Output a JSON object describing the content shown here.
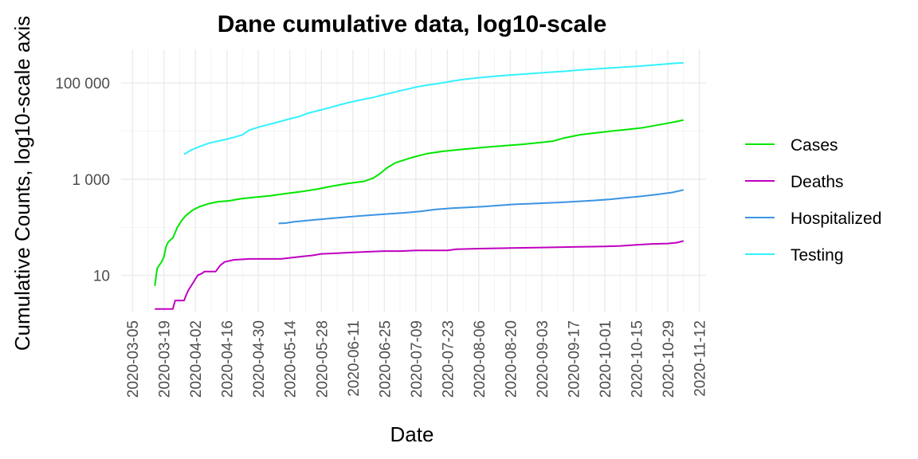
{
  "chart_data": {
    "type": "line",
    "title": "Dane cumulative data, log10-scale",
    "xlabel": "Date",
    "ylabel": "Cumulative Counts, log10-scale axis",
    "y_scale": "log10",
    "ylim": [
      1.7,
      500000
    ],
    "xlim": [
      "2020-02-29",
      "2020-11-15"
    ],
    "x_ticks": [
      "2020-03-05",
      "2020-03-19",
      "2020-04-02",
      "2020-04-16",
      "2020-04-30",
      "2020-05-14",
      "2020-05-28",
      "2020-06-11",
      "2020-06-25",
      "2020-07-09",
      "2020-07-23",
      "2020-08-06",
      "2020-08-20",
      "2020-09-03",
      "2020-09-17",
      "2020-10-01",
      "2020-10-15",
      "2020-10-29",
      "2020-11-12"
    ],
    "y_ticks": [
      {
        "value": 10,
        "label": "10"
      },
      {
        "value": 1000,
        "label": "1 000"
      },
      {
        "value": 100000,
        "label": "100 000"
      }
    ],
    "grid": true,
    "legend_position": "right",
    "series": [
      {
        "name": "Cases",
        "color": "#00e600",
        "points": [
          [
            "2020-03-15",
            6
          ],
          [
            "2020-03-16",
            14
          ],
          [
            "2020-03-18",
            19
          ],
          [
            "2020-03-19",
            24
          ],
          [
            "2020-03-20",
            40
          ],
          [
            "2020-03-21",
            50
          ],
          [
            "2020-03-23",
            60
          ],
          [
            "2020-03-25",
            100
          ],
          [
            "2020-03-27",
            140
          ],
          [
            "2020-03-29",
            180
          ],
          [
            "2020-04-01",
            230
          ],
          [
            "2020-04-04",
            270
          ],
          [
            "2020-04-08",
            310
          ],
          [
            "2020-04-12",
            340
          ],
          [
            "2020-04-17",
            355
          ],
          [
            "2020-04-22",
            390
          ],
          [
            "2020-04-28",
            420
          ],
          [
            "2020-05-05",
            450
          ],
          [
            "2020-05-12",
            500
          ],
          [
            "2020-05-19",
            550
          ],
          [
            "2020-05-26",
            620
          ],
          [
            "2020-06-02",
            720
          ],
          [
            "2020-06-09",
            820
          ],
          [
            "2020-06-16",
            900
          ],
          [
            "2020-06-20",
            1050
          ],
          [
            "2020-06-23",
            1300
          ],
          [
            "2020-06-26",
            1700
          ],
          [
            "2020-06-30",
            2200
          ],
          [
            "2020-07-07",
            2800
          ],
          [
            "2020-07-14",
            3400
          ],
          [
            "2020-07-21",
            3800
          ],
          [
            "2020-07-28",
            4100
          ],
          [
            "2020-08-04",
            4400
          ],
          [
            "2020-08-11",
            4700
          ],
          [
            "2020-08-18",
            5000
          ],
          [
            "2020-08-25",
            5300
          ],
          [
            "2020-09-01",
            5700
          ],
          [
            "2020-09-08",
            6200
          ],
          [
            "2020-09-13",
            7200
          ],
          [
            "2020-09-20",
            8400
          ],
          [
            "2020-09-27",
            9200
          ],
          [
            "2020-10-04",
            10000
          ],
          [
            "2020-10-11",
            10800
          ],
          [
            "2020-10-18",
            11800
          ],
          [
            "2020-10-25",
            13500
          ],
          [
            "2020-11-01",
            15500
          ],
          [
            "2020-11-05",
            17000
          ]
        ]
      },
      {
        "name": "Deaths",
        "color": "#c000c0",
        "points": [
          [
            "2020-03-15",
            2
          ],
          [
            "2020-03-23",
            2
          ],
          [
            "2020-03-24",
            3
          ],
          [
            "2020-03-28",
            3
          ],
          [
            "2020-03-29",
            4
          ],
          [
            "2020-03-30",
            5
          ],
          [
            "2020-04-01",
            7
          ],
          [
            "2020-04-03",
            10
          ],
          [
            "2020-04-05",
            11
          ],
          [
            "2020-04-06",
            12
          ],
          [
            "2020-04-11",
            12
          ],
          [
            "2020-04-13",
            16
          ],
          [
            "2020-04-15",
            19
          ],
          [
            "2020-04-19",
            21
          ],
          [
            "2020-04-26",
            22
          ],
          [
            "2020-05-03",
            22
          ],
          [
            "2020-05-10",
            22
          ],
          [
            "2020-05-17",
            24
          ],
          [
            "2020-05-24",
            26
          ],
          [
            "2020-05-28",
            28
          ],
          [
            "2020-06-04",
            29
          ],
          [
            "2020-06-11",
            30
          ],
          [
            "2020-06-18",
            31
          ],
          [
            "2020-06-25",
            32
          ],
          [
            "2020-07-02",
            32
          ],
          [
            "2020-07-09",
            33
          ],
          [
            "2020-07-23",
            33
          ],
          [
            "2020-07-27",
            35
          ],
          [
            "2020-08-06",
            36
          ],
          [
            "2020-08-20",
            37
          ],
          [
            "2020-09-03",
            38
          ],
          [
            "2020-09-17",
            39
          ],
          [
            "2020-10-01",
            40
          ],
          [
            "2020-10-08",
            41
          ],
          [
            "2020-10-15",
            43
          ],
          [
            "2020-10-22",
            45
          ],
          [
            "2020-10-29",
            46
          ],
          [
            "2020-11-02",
            48
          ],
          [
            "2020-11-05",
            52
          ]
        ]
      },
      {
        "name": "Hospitalized",
        "color": "#3b94e3",
        "points": [
          [
            "2020-05-09",
            120
          ],
          [
            "2020-05-12",
            122
          ],
          [
            "2020-05-16",
            130
          ],
          [
            "2020-05-23",
            140
          ],
          [
            "2020-05-30",
            150
          ],
          [
            "2020-06-06",
            160
          ],
          [
            "2020-06-13",
            170
          ],
          [
            "2020-06-20",
            180
          ],
          [
            "2020-06-27",
            190
          ],
          [
            "2020-07-04",
            200
          ],
          [
            "2020-07-11",
            215
          ],
          [
            "2020-07-18",
            235
          ],
          [
            "2020-07-25",
            250
          ],
          [
            "2020-08-01",
            260
          ],
          [
            "2020-08-08",
            270
          ],
          [
            "2020-08-15",
            285
          ],
          [
            "2020-08-22",
            300
          ],
          [
            "2020-08-29",
            310
          ],
          [
            "2020-09-05",
            320
          ],
          [
            "2020-09-12",
            330
          ],
          [
            "2020-09-19",
            345
          ],
          [
            "2020-09-26",
            360
          ],
          [
            "2020-10-03",
            380
          ],
          [
            "2020-10-10",
            410
          ],
          [
            "2020-10-17",
            440
          ],
          [
            "2020-10-24",
            480
          ],
          [
            "2020-10-31",
            530
          ],
          [
            "2020-11-05",
            600
          ]
        ]
      },
      {
        "name": "Testing",
        "color": "#33f2ff",
        "points": [
          [
            "2020-03-28",
            3300
          ],
          [
            "2020-03-31",
            4000
          ],
          [
            "2020-04-04",
            4800
          ],
          [
            "2020-04-08",
            5600
          ],
          [
            "2020-04-12",
            6200
          ],
          [
            "2020-04-16",
            6800
          ],
          [
            "2020-04-20",
            7600
          ],
          [
            "2020-04-23",
            8400
          ],
          [
            "2020-04-26",
            10500
          ],
          [
            "2020-04-30",
            12000
          ],
          [
            "2020-05-04",
            13500
          ],
          [
            "2020-05-09",
            15500
          ],
          [
            "2020-05-14",
            18000
          ],
          [
            "2020-05-18",
            20000
          ],
          [
            "2020-05-22",
            23500
          ],
          [
            "2020-05-27",
            27000
          ],
          [
            "2020-05-31",
            30000
          ],
          [
            "2020-06-04",
            34000
          ],
          [
            "2020-06-08",
            38000
          ],
          [
            "2020-06-12",
            42000
          ],
          [
            "2020-06-16",
            46000
          ],
          [
            "2020-06-20",
            50000
          ],
          [
            "2020-06-24",
            56000
          ],
          [
            "2020-06-28",
            62000
          ],
          [
            "2020-07-02",
            69000
          ],
          [
            "2020-07-06",
            76000
          ],
          [
            "2020-07-10",
            84000
          ],
          [
            "2020-07-14",
            90000
          ],
          [
            "2020-07-18",
            96000
          ],
          [
            "2020-07-22",
            103000
          ],
          [
            "2020-07-26",
            111000
          ],
          [
            "2020-07-30",
            118000
          ],
          [
            "2020-08-04",
            126000
          ],
          [
            "2020-08-09",
            133000
          ],
          [
            "2020-08-14",
            139000
          ],
          [
            "2020-08-19",
            145000
          ],
          [
            "2020-08-24",
            151000
          ],
          [
            "2020-08-29",
            157000
          ],
          [
            "2020-09-03",
            163000
          ],
          [
            "2020-09-08",
            169000
          ],
          [
            "2020-09-13",
            175000
          ],
          [
            "2020-09-18",
            183000
          ],
          [
            "2020-09-23",
            191000
          ],
          [
            "2020-09-28",
            198000
          ],
          [
            "2020-10-03",
            205000
          ],
          [
            "2020-10-08",
            212000
          ],
          [
            "2020-10-13",
            219000
          ],
          [
            "2020-10-18",
            228000
          ],
          [
            "2020-10-23",
            238000
          ],
          [
            "2020-10-28",
            248000
          ],
          [
            "2020-11-02",
            258000
          ],
          [
            "2020-11-05",
            262000
          ]
        ]
      }
    ]
  }
}
